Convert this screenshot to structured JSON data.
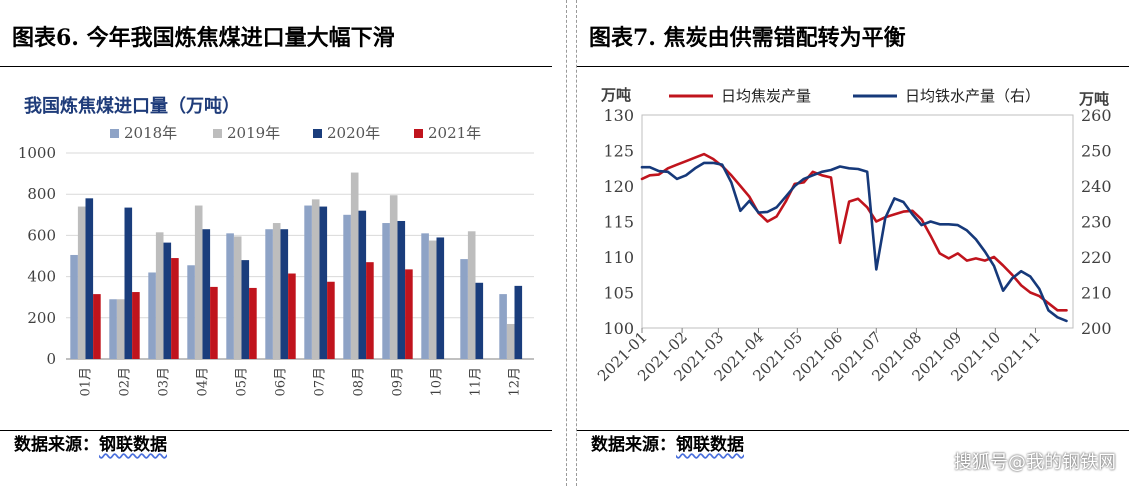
{
  "left": {
    "title": "图表6.  今年我国炼焦煤进口量大幅下滑",
    "source_label": "数据来源：",
    "source_name": "钢联数据"
  },
  "right": {
    "title": "图表7.  焦炭由供需错配转为平衡",
    "source_label": "数据来源：",
    "source_name": "钢联数据"
  },
  "watermark": "搜狐号@我的钢铁网",
  "colors": {
    "s2018": "#8ea3c6",
    "s2019": "#bdbdbd",
    "s2020": "#1a3d7c",
    "s2021": "#c0141d",
    "coke": "#c0141d",
    "iron": "#16397a",
    "subtitle": "#1f3c7a"
  },
  "chart_data": [
    {
      "type": "bar",
      "title": "我国炼焦煤进口量（万吨）",
      "categories": [
        "01月",
        "02月",
        "03月",
        "04月",
        "05月",
        "06月",
        "07月",
        "08月",
        "09月",
        "10月",
        "11月",
        "12月"
      ],
      "series": [
        {
          "name": "2018年",
          "values": [
            505,
            290,
            420,
            455,
            610,
            630,
            745,
            700,
            660,
            610,
            485,
            315
          ]
        },
        {
          "name": "2019年",
          "values": [
            740,
            290,
            615,
            745,
            595,
            660,
            775,
            905,
            795,
            575,
            620,
            170
          ]
        },
        {
          "name": "2020年",
          "values": [
            780,
            735,
            565,
            630,
            480,
            630,
            740,
            720,
            670,
            590,
            370,
            355
          ]
        },
        {
          "name": "2021年",
          "values": [
            315,
            325,
            490,
            350,
            345,
            415,
            375,
            470,
            435,
            null,
            null,
            null
          ]
        }
      ],
      "ylim": [
        0,
        1000
      ],
      "yticks": [
        "0",
        "200",
        "400",
        "600",
        "800",
        "1000"
      ],
      "legend": "top"
    },
    {
      "type": "line",
      "x_labels": [
        "2021-01",
        "2021-02",
        "2021-03",
        "2021-04",
        "2021-05",
        "2021-06",
        "2021-07",
        "2021-08",
        "2021-09",
        "2021-10",
        "2021-11"
      ],
      "left_unit": "万吨",
      "right_unit": "万吨",
      "left_ylim": [
        100,
        130
      ],
      "right_ylim": [
        200,
        260
      ],
      "left_yticks": [
        "100",
        "105",
        "110",
        "115",
        "120",
        "125",
        "130"
      ],
      "right_yticks": [
        "200",
        "210",
        "220",
        "230",
        "240",
        "250",
        "260"
      ],
      "legend": "top",
      "series": [
        {
          "name": "日均焦炭产量",
          "axis": "left",
          "x": [
            "2021-01-01",
            "2021-01-07",
            "2021-01-14",
            "2021-01-21",
            "2021-01-28",
            "2021-02-04",
            "2021-02-11",
            "2021-02-18",
            "2021-02-25",
            "2021-03-04",
            "2021-03-11",
            "2021-03-18",
            "2021-03-25",
            "2021-04-01",
            "2021-04-08",
            "2021-04-15",
            "2021-04-22",
            "2021-04-29",
            "2021-05-06",
            "2021-05-13",
            "2021-05-20",
            "2021-05-27",
            "2021-06-03",
            "2021-06-10",
            "2021-06-17",
            "2021-06-24",
            "2021-07-01",
            "2021-07-08",
            "2021-07-15",
            "2021-07-22",
            "2021-07-29",
            "2021-08-05",
            "2021-08-12",
            "2021-08-19",
            "2021-08-26",
            "2021-09-02",
            "2021-09-09",
            "2021-09-16",
            "2021-09-23",
            "2021-09-30",
            "2021-10-07",
            "2021-10-14",
            "2021-10-21",
            "2021-10-28",
            "2021-11-04",
            "2021-11-11",
            "2021-11-18",
            "2021-11-25"
          ],
          "y": [
            121.0,
            121.5,
            121.6,
            122.5,
            123.0,
            123.5,
            124.0,
            124.5,
            123.8,
            122.8,
            121.5,
            120.0,
            118.5,
            116.2,
            115.0,
            115.7,
            117.8,
            120.3,
            120.5,
            122.0,
            121.5,
            121.2,
            112.0,
            117.8,
            118.2,
            117.0,
            115.0,
            115.6,
            116.0,
            116.4,
            116.5,
            115.3,
            113.0,
            110.5,
            109.8,
            110.5,
            109.5,
            109.8,
            109.5,
            110.0,
            108.8,
            107.5,
            106.0,
            105.0,
            104.5,
            103.5,
            102.5,
            102.5
          ]
        },
        {
          "name": "日均铁水产量（右）",
          "axis": "right",
          "x": [
            "2021-01-01",
            "2021-01-07",
            "2021-01-14",
            "2021-01-21",
            "2021-01-28",
            "2021-02-04",
            "2021-02-11",
            "2021-02-18",
            "2021-02-25",
            "2021-03-04",
            "2021-03-11",
            "2021-03-18",
            "2021-03-25",
            "2021-04-01",
            "2021-04-08",
            "2021-04-15",
            "2021-04-22",
            "2021-04-29",
            "2021-05-06",
            "2021-05-13",
            "2021-05-20",
            "2021-05-27",
            "2021-06-03",
            "2021-06-10",
            "2021-06-17",
            "2021-06-24",
            "2021-07-01",
            "2021-07-08",
            "2021-07-15",
            "2021-07-22",
            "2021-07-29",
            "2021-08-05",
            "2021-08-12",
            "2021-08-19",
            "2021-08-26",
            "2021-09-02",
            "2021-09-09",
            "2021-09-16",
            "2021-09-23",
            "2021-09-30",
            "2021-10-07",
            "2021-10-14",
            "2021-10-21",
            "2021-10-28",
            "2021-11-04",
            "2021-11-11",
            "2021-11-18",
            "2021-11-25"
          ],
          "y": [
            245.3,
            245.3,
            244.2,
            244.0,
            242.0,
            243.0,
            245.0,
            246.5,
            246.5,
            246.0,
            241.0,
            233.0,
            235.8,
            232.5,
            232.7,
            234.0,
            237.0,
            240.0,
            242.0,
            243.0,
            244.0,
            244.5,
            245.5,
            245.0,
            244.8,
            244.0,
            216.5,
            231.0,
            236.5,
            235.5,
            232.0,
            229.0,
            230.0,
            229.2,
            229.2,
            229.0,
            227.5,
            225.0,
            221.5,
            217.5,
            210.5,
            214.0,
            216.0,
            214.5,
            211.0,
            205.0,
            203.0,
            202.0
          ]
        }
      ]
    }
  ]
}
